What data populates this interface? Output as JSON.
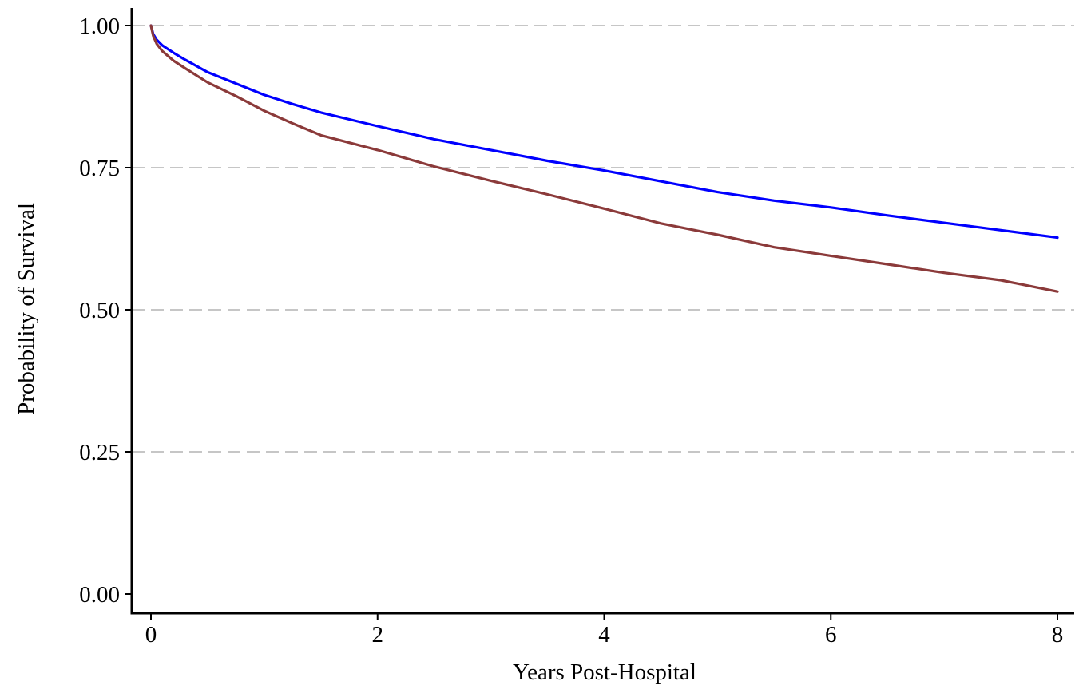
{
  "chart_data": {
    "type": "line",
    "xlabel": "Years Post-Hospital",
    "ylabel": "Probability of Survival",
    "xlim": [
      0,
      8
    ],
    "ylim": [
      0,
      1
    ],
    "xticks": [
      0,
      2,
      4,
      6,
      8
    ],
    "xtick_labels": [
      "0",
      "2",
      "4",
      "6",
      "8"
    ],
    "yticks": [
      0,
      0.25,
      0.5,
      0.75,
      1
    ],
    "ytick_labels": [
      "0.00",
      "0.25",
      "0.50",
      "0.75",
      "1.00"
    ],
    "grid": "horizontal dashed",
    "legend": "none",
    "series": [
      {
        "color": "#0000ff",
        "x": [
          0,
          0.02,
          0.05,
          0.1,
          0.2,
          0.3,
          0.5,
          0.75,
          1.0,
          1.25,
          1.5,
          2.0,
          2.5,
          3.0,
          3.5,
          4.0,
          4.5,
          5.0,
          5.5,
          6.0,
          6.5,
          7.0,
          7.5,
          8.0
        ],
        "y": [
          1.0,
          0.985,
          0.975,
          0.965,
          0.952,
          0.94,
          0.918,
          0.898,
          0.878,
          0.862,
          0.847,
          0.823,
          0.8,
          0.781,
          0.762,
          0.745,
          0.726,
          0.707,
          0.692,
          0.68,
          0.666,
          0.653,
          0.64,
          0.627
        ]
      },
      {
        "color": "#8b3a3a",
        "x": [
          0,
          0.02,
          0.05,
          0.1,
          0.2,
          0.3,
          0.5,
          0.75,
          1.0,
          1.25,
          1.5,
          2.0,
          2.5,
          3.0,
          3.5,
          4.0,
          4.5,
          5.0,
          5.5,
          6.0,
          6.5,
          7.0,
          7.5,
          8.0
        ],
        "y": [
          1.0,
          0.982,
          0.968,
          0.955,
          0.938,
          0.925,
          0.9,
          0.876,
          0.85,
          0.828,
          0.807,
          0.781,
          0.752,
          0.727,
          0.703,
          0.678,
          0.652,
          0.632,
          0.61,
          0.595,
          0.58,
          0.565,
          0.552,
          0.532
        ]
      }
    ]
  }
}
